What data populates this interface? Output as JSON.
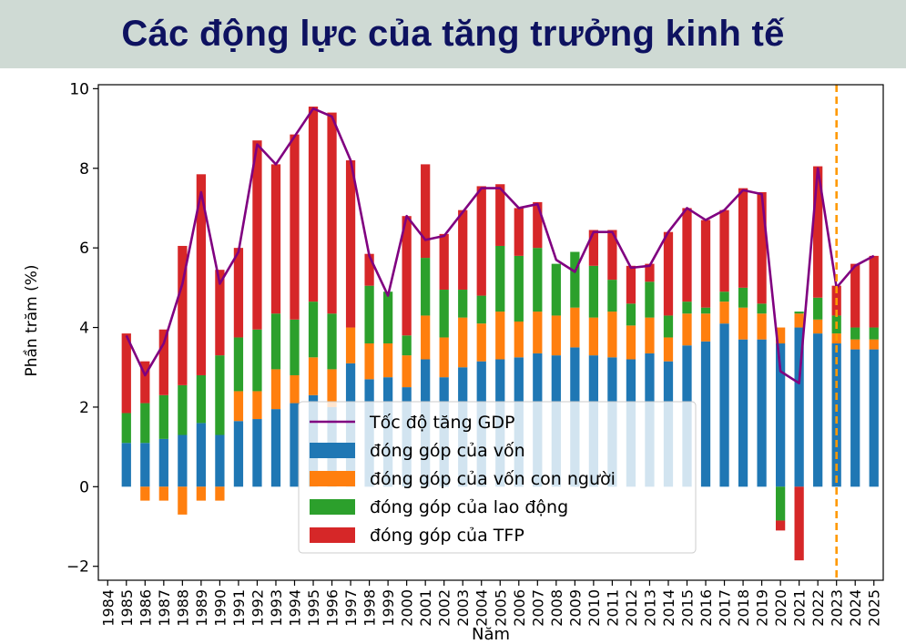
{
  "page": {
    "title": "Các động lực của tăng trưởng kinh tế"
  },
  "chart_data": {
    "type": "bar",
    "stacked": true,
    "xlabel": "Năm",
    "ylabel": "Phần trăm (%)",
    "ylim": [
      -2.35,
      10.1
    ],
    "yticks": [
      -2,
      0,
      2,
      4,
      6,
      8,
      10
    ],
    "ytick_labels": [
      "−2",
      "0",
      "2",
      "4",
      "6",
      "8",
      "10"
    ],
    "categories": [
      "1984",
      "1985",
      "1986",
      "1987",
      "1988",
      "1989",
      "1990",
      "1991",
      "1992",
      "1993",
      "1994",
      "1995",
      "1996",
      "1997",
      "1998",
      "1999",
      "2000",
      "2001",
      "2002",
      "2003",
      "2004",
      "2005",
      "2006",
      "2007",
      "2008",
      "2009",
      "2010",
      "2011",
      "2012",
      "2013",
      "2014",
      "2015",
      "2016",
      "2017",
      "2018",
      "2019",
      "2020",
      "2021",
      "2022",
      "2023",
      "2024",
      "2025"
    ],
    "series": [
      {
        "name": "đóng góp của vốn",
        "color": "#1f77b4",
        "values": [
          null,
          1.1,
          1.1,
          1.2,
          1.3,
          1.6,
          1.3,
          1.65,
          1.7,
          1.95,
          2.1,
          2.3,
          2.0,
          3.1,
          2.7,
          2.75,
          2.5,
          3.2,
          2.75,
          3.0,
          3.15,
          3.2,
          3.25,
          3.35,
          3.3,
          3.5,
          3.3,
          3.25,
          3.2,
          3.35,
          3.15,
          3.55,
          3.65,
          4.1,
          3.7,
          3.7,
          3.6,
          4.0,
          3.85,
          3.6,
          3.45,
          3.45
        ]
      },
      {
        "name": "đóng góp của vốn con người",
        "color": "#ff7f0e",
        "values": [
          null,
          0,
          -0.35,
          -0.35,
          -0.7,
          -0.35,
          -0.35,
          0.75,
          0.7,
          1.0,
          0.7,
          0.95,
          0.95,
          0.9,
          0.9,
          0.85,
          0.8,
          1.1,
          1.0,
          1.25,
          0.95,
          1.2,
          0.9,
          1.05,
          1.0,
          1.0,
          0.95,
          1.15,
          0.85,
          0.9,
          0.6,
          0.8,
          0.7,
          0.55,
          0.8,
          0.65,
          0.4,
          0.35,
          0.35,
          0.25,
          0.25,
          0.25
        ]
      },
      {
        "name": "đóng góp của lao động",
        "color": "#2ca02c",
        "values": [
          null,
          0.75,
          1.0,
          1.1,
          1.25,
          1.2,
          2.0,
          1.35,
          1.55,
          1.4,
          1.4,
          1.4,
          1.4,
          0.0,
          1.45,
          1.3,
          0.5,
          1.45,
          1.2,
          0.7,
          0.7,
          1.65,
          1.65,
          1.6,
          1.3,
          1.4,
          1.3,
          0.8,
          0.55,
          0.9,
          0.55,
          0.3,
          0.15,
          0.25,
          0.5,
          0.25,
          -0.85,
          0.05,
          0.55,
          0.45,
          0.3,
          0.3
        ]
      },
      {
        "name": "đóng góp của TFP",
        "color": "#d62728",
        "values": [
          null,
          2.0,
          1.05,
          1.65,
          3.5,
          5.05,
          2.15,
          2.25,
          4.75,
          3.75,
          4.65,
          4.9,
          5.05,
          4.2,
          0.8,
          0.0,
          3.0,
          2.35,
          1.4,
          2.0,
          2.75,
          1.55,
          1.2,
          1.15,
          0.0,
          0.0,
          0.9,
          1.25,
          0.95,
          0.45,
          2.1,
          2.35,
          2.2,
          2.05,
          2.5,
          2.8,
          -0.25,
          -1.85,
          3.3,
          0.75,
          1.6,
          1.8
        ]
      },
      {
        "name": "Tốc độ tăng GDP",
        "color": "#800080",
        "kind": "line",
        "values": [
          null,
          3.8,
          2.8,
          3.6,
          5.1,
          7.4,
          5.1,
          5.9,
          8.6,
          8.1,
          8.8,
          9.5,
          9.3,
          8.2,
          5.8,
          4.8,
          6.8,
          6.2,
          6.3,
          6.9,
          7.5,
          7.5,
          7.0,
          7.1,
          5.7,
          5.4,
          6.4,
          6.4,
          5.5,
          5.55,
          6.4,
          7.0,
          6.7,
          6.95,
          7.45,
          7.35,
          2.9,
          2.6,
          8.0,
          5.0,
          5.55,
          5.8
        ]
      }
    ],
    "legend": {
      "placement": "lower-center",
      "order": [
        "Tốc độ tăng GDP",
        "đóng góp của vốn",
        "đóng góp của vốn con người",
        "đóng góp của lao động",
        "đóng góp của TFP"
      ]
    },
    "reference_line": {
      "x": "2023",
      "style": "dashed",
      "color": "#ff9900"
    },
    "grid": false
  }
}
